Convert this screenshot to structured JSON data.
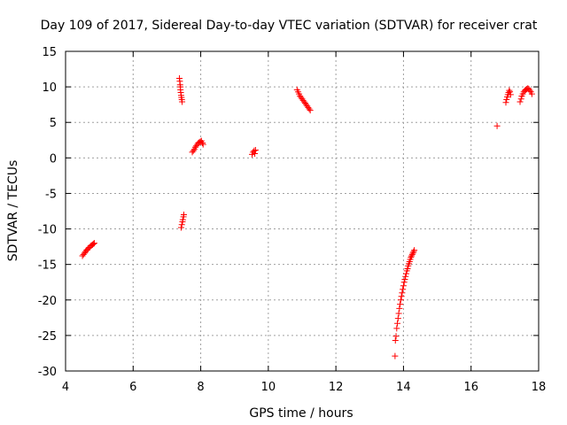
{
  "chart_data": {
    "type": "scatter",
    "title": "Day 109 of 2017, Sidereal Day-to-day VTEC variation (SDTVAR) for receiver crat",
    "xlabel": "GPS time / hours",
    "ylabel": "SDTVAR / TECUs",
    "xlim": [
      4,
      18
    ],
    "ylim": [
      -30,
      15
    ],
    "xticks": [
      4,
      6,
      8,
      10,
      12,
      14,
      16,
      18
    ],
    "yticks": [
      -30,
      -25,
      -20,
      -15,
      -10,
      -5,
      0,
      5,
      10,
      15
    ],
    "grid": true,
    "legend": "none",
    "marker": "plus",
    "color": "#ff0000",
    "series": [
      {
        "x": [
          4.5,
          4.53,
          4.56,
          4.59,
          4.62,
          4.65,
          4.68,
          4.71,
          4.74,
          4.77,
          4.8,
          4.83,
          4.85
        ],
        "y": [
          -13.8,
          -13.6,
          -13.4,
          -13.2,
          -13.0,
          -12.9,
          -12.7,
          -12.6,
          -12.4,
          -12.3,
          -12.2,
          -12.1,
          -12.0
        ]
      },
      {
        "x": [
          7.37,
          7.38,
          7.39,
          7.4,
          7.4,
          7.41,
          7.42,
          7.43,
          7.44,
          7.45
        ],
        "y": [
          11.2,
          10.8,
          10.3,
          10.0,
          9.6,
          9.2,
          8.8,
          8.5,
          8.2,
          7.9
        ]
      },
      {
        "x": [
          7.42,
          7.44,
          7.46,
          7.47,
          7.49,
          7.5
        ],
        "y": [
          -9.8,
          -9.4,
          -9.0,
          -8.7,
          -8.3,
          -8.0
        ]
      },
      {
        "x": [
          7.75,
          7.78,
          7.81,
          7.84,
          7.87,
          7.9,
          7.93,
          7.96,
          7.99,
          8.02,
          8.05,
          8.07
        ],
        "y": [
          0.8,
          1.0,
          1.2,
          1.5,
          1.7,
          1.9,
          2.1,
          2.2,
          2.3,
          2.4,
          2.1,
          1.9
        ]
      },
      {
        "x": [
          9.52,
          9.55,
          9.58,
          9.6,
          9.62
        ],
        "y": [
          0.5,
          0.8,
          1.0,
          0.6,
          1.1
        ]
      },
      {
        "x": [
          10.85,
          10.88,
          10.91,
          10.94,
          10.97,
          11.0,
          11.03,
          11.06,
          11.09,
          11.12,
          11.15,
          11.18,
          11.21,
          11.24
        ],
        "y": [
          9.6,
          9.3,
          9.0,
          8.7,
          8.5,
          8.3,
          8.1,
          7.9,
          7.7,
          7.5,
          7.3,
          7.1,
          6.9,
          6.7
        ]
      },
      {
        "x": [
          13.75,
          13.76,
          13.78,
          13.8,
          13.82,
          13.84,
          13.86,
          13.88,
          13.9,
          13.92,
          13.94,
          13.96,
          13.98,
          14.0,
          14.02,
          14.04,
          14.06,
          14.08,
          14.1,
          14.12,
          14.14,
          14.16,
          14.18,
          14.2,
          14.22,
          14.24,
          14.26,
          14.28,
          14.3,
          14.32
        ],
        "y": [
          -27.9,
          -25.7,
          -25.1,
          -24.0,
          -23.3,
          -22.6,
          -21.9,
          -21.2,
          -20.6,
          -20.0,
          -19.5,
          -19.0,
          -18.5,
          -18.0,
          -17.5,
          -17.1,
          -16.7,
          -16.3,
          -15.9,
          -15.6,
          -15.2,
          -14.9,
          -14.6,
          -14.3,
          -14.0,
          -13.8,
          -13.6,
          -13.4,
          -13.2,
          -13.0
        ]
      },
      {
        "x": [
          16.77
        ],
        "y": [
          4.5
        ]
      },
      {
        "x": [
          17.03,
          17.05,
          17.07,
          17.09,
          17.11,
          17.13,
          17.15,
          17.17
        ],
        "y": [
          7.8,
          8.2,
          8.6,
          8.9,
          9.2,
          9.5,
          9.3,
          8.9
        ]
      },
      {
        "x": [
          17.45,
          17.48,
          17.5,
          17.53,
          17.56,
          17.59,
          17.62,
          17.65,
          17.68,
          17.71,
          17.74,
          17.77,
          17.8
        ],
        "y": [
          7.9,
          8.3,
          8.7,
          9.0,
          9.3,
          9.5,
          9.6,
          9.7,
          9.8,
          9.7,
          9.5,
          9.3,
          9.0
        ]
      }
    ]
  }
}
